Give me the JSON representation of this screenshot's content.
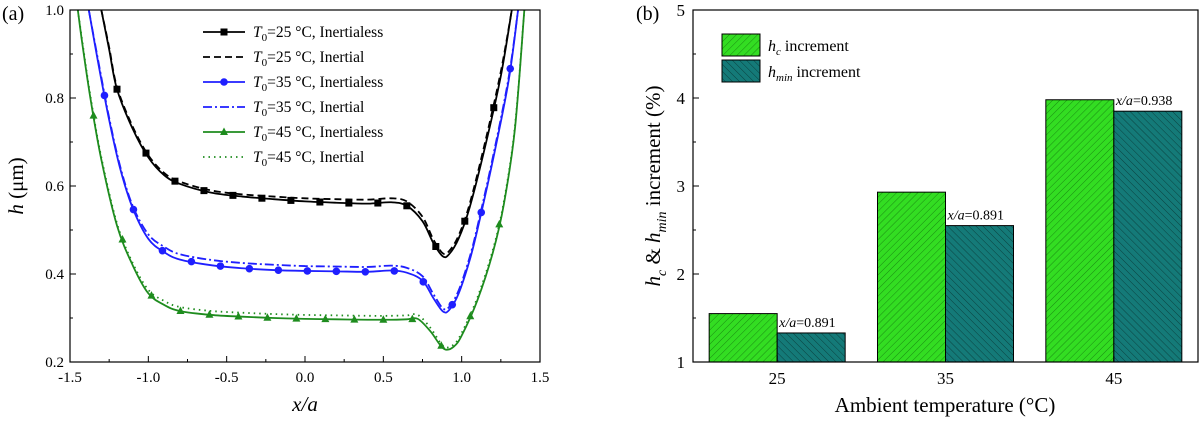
{
  "chart_data": [
    {
      "type": "line",
      "panel_label": "(a)",
      "xlabel": "x/a",
      "ylabel": "h (μm)",
      "xlim": [
        -1.5,
        1.5
      ],
      "ylim": [
        0.2,
        1.0
      ],
      "xticks": [
        -1.5,
        -1.0,
        -0.5,
        0.0,
        0.5,
        1.0,
        1.5
      ],
      "xtick_labels": [
        "-1.5",
        "-1.0",
        "-0.5",
        "0.0",
        "0.5",
        "1.0",
        "1.5"
      ],
      "yticks": [
        0.2,
        0.4,
        0.6,
        0.8,
        1.0
      ],
      "ytick_labels": [
        "0.2",
        "0.4",
        "0.6",
        "0.8",
        "1.0"
      ],
      "legend_position": "top-right",
      "series": [
        {
          "name": "T0=25 °C, Inertialess",
          "legend_text": "=25 °C, Inertialess",
          "color": "#000000",
          "style": "solid",
          "marker": "square",
          "x": [
            -1.3,
            -1.25,
            -1.2,
            -1.1,
            -1.0,
            -0.9,
            -0.8,
            -0.6,
            -0.4,
            -0.2,
            0.0,
            0.2,
            0.4,
            0.55,
            0.65,
            0.75,
            0.82,
            0.88,
            0.92,
            0.98,
            1.05,
            1.15,
            1.25,
            1.32
          ],
          "y": [
            1.0,
            0.91,
            0.82,
            0.73,
            0.665,
            0.625,
            0.605,
            0.585,
            0.576,
            0.57,
            0.565,
            0.562,
            0.56,
            0.563,
            0.555,
            0.52,
            0.47,
            0.44,
            0.445,
            0.48,
            0.55,
            0.69,
            0.85,
            1.0
          ]
        },
        {
          "name": "T0=25 °C, Inertial",
          "legend_text": "=25 °C, Inertial",
          "color": "#000000",
          "style": "dashed",
          "marker": "none",
          "x": [
            -1.3,
            -1.25,
            -1.2,
            -1.1,
            -1.0,
            -0.9,
            -0.8,
            -0.6,
            -0.4,
            -0.2,
            0.0,
            0.2,
            0.4,
            0.55,
            0.65,
            0.75,
            0.82,
            0.88,
            0.92,
            0.98,
            1.05,
            1.15,
            1.25,
            1.32
          ],
          "y": [
            1.0,
            0.915,
            0.825,
            0.735,
            0.67,
            0.63,
            0.61,
            0.59,
            0.581,
            0.576,
            0.572,
            0.57,
            0.569,
            0.572,
            0.565,
            0.53,
            0.478,
            0.447,
            0.452,
            0.487,
            0.558,
            0.7,
            0.86,
            1.0
          ]
        },
        {
          "name": "T0=35 °C, Inertialess",
          "legend_text": "=35 °C, Inertialess",
          "color": "#1f1fff",
          "style": "solid",
          "marker": "circle",
          "x": [
            -1.38,
            -1.32,
            -1.25,
            -1.18,
            -1.1,
            -1.0,
            -0.9,
            -0.8,
            -0.6,
            -0.4,
            -0.2,
            0.0,
            0.2,
            0.4,
            0.55,
            0.65,
            0.75,
            0.82,
            0.88,
            0.92,
            0.98,
            1.05,
            1.1,
            1.2,
            1.3,
            1.36
          ],
          "y": [
            1.0,
            0.88,
            0.75,
            0.64,
            0.55,
            0.48,
            0.45,
            0.433,
            0.42,
            0.413,
            0.409,
            0.407,
            0.406,
            0.405,
            0.408,
            0.403,
            0.385,
            0.345,
            0.315,
            0.318,
            0.355,
            0.43,
            0.5,
            0.66,
            0.84,
            1.0
          ]
        },
        {
          "name": "T0=35 °C, Inertial",
          "legend_text": "=35 °C, Inertial",
          "color": "#1f1fff",
          "style": "dashdot",
          "marker": "none",
          "x": [
            -1.38,
            -1.32,
            -1.25,
            -1.18,
            -1.1,
            -1.0,
            -0.9,
            -0.8,
            -0.6,
            -0.4,
            -0.2,
            0.0,
            0.2,
            0.4,
            0.55,
            0.65,
            0.75,
            0.82,
            0.88,
            0.92,
            0.98,
            1.05,
            1.1,
            1.2,
            1.3,
            1.36
          ],
          "y": [
            1.0,
            0.885,
            0.755,
            0.645,
            0.555,
            0.49,
            0.462,
            0.445,
            0.432,
            0.425,
            0.421,
            0.418,
            0.417,
            0.416,
            0.419,
            0.414,
            0.395,
            0.354,
            0.322,
            0.325,
            0.362,
            0.437,
            0.507,
            0.667,
            0.847,
            1.0
          ]
        },
        {
          "name": "T0=45 °C, Inertialess",
          "legend_text": "=45 °C, Inertialess",
          "color": "#1e8c1e",
          "style": "solid",
          "marker": "triangle",
          "x": [
            -1.45,
            -1.42,
            -1.37,
            -1.3,
            -1.2,
            -1.1,
            -1.0,
            -0.9,
            -0.8,
            -0.6,
            -0.4,
            -0.2,
            0.0,
            0.2,
            0.4,
            0.55,
            0.65,
            0.72,
            0.8,
            0.86,
            0.9,
            0.95,
            1.0,
            1.1,
            1.2,
            1.27,
            1.34,
            1.4
          ],
          "y": [
            1.0,
            0.92,
            0.8,
            0.66,
            0.51,
            0.42,
            0.356,
            0.33,
            0.316,
            0.307,
            0.303,
            0.3,
            0.298,
            0.297,
            0.296,
            0.296,
            0.297,
            0.298,
            0.27,
            0.24,
            0.228,
            0.235,
            0.26,
            0.34,
            0.45,
            0.56,
            0.73,
            1.0
          ]
        },
        {
          "name": "T0=45 °C, Inertial",
          "legend_text": "=45 °C, Inertial",
          "color": "#1e8c1e",
          "style": "dotted",
          "marker": "none",
          "x": [
            -1.45,
            -1.42,
            -1.37,
            -1.3,
            -1.2,
            -1.1,
            -1.0,
            -0.9,
            -0.8,
            -0.6,
            -0.4,
            -0.2,
            0.0,
            0.2,
            0.4,
            0.55,
            0.65,
            0.72,
            0.8,
            0.86,
            0.9,
            0.95,
            1.0,
            1.1,
            1.2,
            1.27,
            1.34,
            1.4
          ],
          "y": [
            1.0,
            0.925,
            0.805,
            0.665,
            0.515,
            0.425,
            0.364,
            0.339,
            0.325,
            0.316,
            0.312,
            0.309,
            0.307,
            0.306,
            0.305,
            0.305,
            0.306,
            0.307,
            0.278,
            0.246,
            0.233,
            0.24,
            0.266,
            0.346,
            0.456,
            0.566,
            0.736,
            1.0
          ]
        }
      ]
    },
    {
      "type": "bar",
      "panel_label": "(b)",
      "xlabel": "Ambient temperature (°C)",
      "ylabel": "h_c & h_min increment (%)",
      "ylim": [
        1,
        5
      ],
      "yticks": [
        1,
        2,
        3,
        4,
        5
      ],
      "ytick_labels": [
        "1",
        "2",
        "3",
        "4",
        "5"
      ],
      "categories": [
        "25",
        "35",
        "45"
      ],
      "legend_position": "top-left",
      "series": [
        {
          "name": "hc increment",
          "legend_sub": "c",
          "legend_text": " increment",
          "color": "#33dd22",
          "values": [
            1.55,
            2.93,
            3.98
          ]
        },
        {
          "name": "hmin increment",
          "legend_sub": "min",
          "legend_text": " increment",
          "color": "#147a78",
          "values": [
            1.33,
            2.55,
            3.85
          ]
        }
      ],
      "annotations": [
        {
          "category": "25",
          "text": "=0.891"
        },
        {
          "category": "35",
          "text": "=0.891"
        },
        {
          "category": "45",
          "text": "=0.938"
        }
      ]
    }
  ]
}
